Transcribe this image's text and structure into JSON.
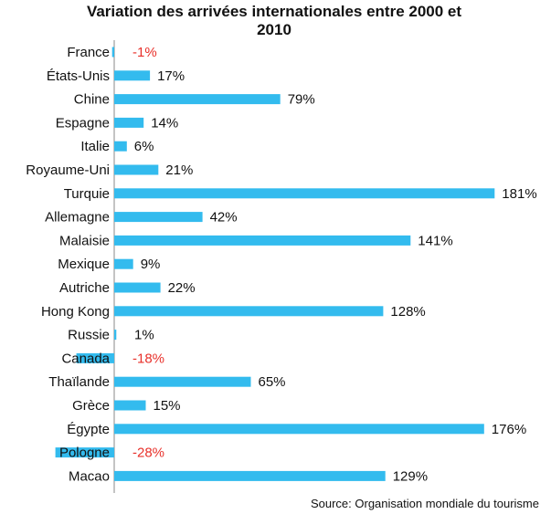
{
  "chart_data": {
    "type": "bar",
    "orientation": "horizontal",
    "title_lines": [
      "Variation des arrivées internationales entre 2000 et",
      "2010"
    ],
    "source": "Source: Organisation mondiale  du tourisme",
    "categories": [
      "France",
      "États-Unis",
      "Chine",
      "Espagne",
      "Italie",
      "Royaume-Uni",
      "Turquie",
      "Allemagne",
      "Malaisie",
      "Mexique",
      "Autriche",
      "Hong Kong",
      "Russie",
      "Canada",
      "Thaïlande",
      "Grèce",
      "Égypte",
      "Pologne",
      "Macao"
    ],
    "values": [
      -1,
      17,
      79,
      14,
      6,
      21,
      181,
      42,
      141,
      9,
      22,
      128,
      1,
      -18,
      65,
      15,
      176,
      -28,
      129
    ],
    "value_labels": [
      "-1%",
      "17%",
      "79%",
      "14%",
      "6%",
      "21%",
      "181%",
      "42%",
      "141%",
      "9%",
      "22%",
      "128%",
      "1%",
      "-18%",
      "65%",
      "15%",
      "176%",
      "-28%",
      "129%"
    ],
    "unit": "%",
    "xlim": [
      -28,
      181
    ],
    "grid": false,
    "legend": "none",
    "colors": {
      "bar": "#33BBEE",
      "positive_label": "#111111",
      "negative_label": "#E8302A",
      "axis": "#888888"
    }
  }
}
